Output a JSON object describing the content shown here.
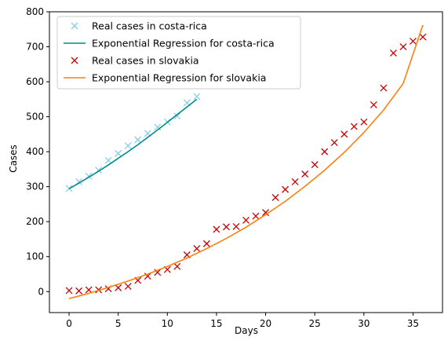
{
  "chart_data": {
    "type": "line",
    "title": "",
    "xlabel": "Days",
    "ylabel": "Cases",
    "xlim": [
      -2,
      38
    ],
    "ylim": [
      -60,
      800
    ],
    "xticks": [
      0,
      5,
      10,
      15,
      20,
      25,
      30,
      35
    ],
    "yticks": [
      0,
      100,
      200,
      300,
      400,
      500,
      600,
      700,
      800
    ],
    "grid": false,
    "legend_position": "top-left",
    "series": [
      {
        "name": "Real cases in costa-rica",
        "kind": "scatter",
        "marker": "x",
        "color": "#87ceeb",
        "x": [
          0,
          1,
          2,
          3,
          4,
          5,
          6,
          7,
          8,
          9,
          10,
          11,
          12,
          13
        ],
        "y": [
          295,
          314,
          330,
          347,
          375,
          395,
          417,
          434,
          452,
          470,
          485,
          502,
          540,
          558
        ]
      },
      {
        "name": "Exponential Regression for costa-rica",
        "kind": "line",
        "color": "#008b8b",
        "x": [
          0,
          1,
          2,
          3,
          4,
          5,
          6,
          7,
          8,
          9,
          10,
          11,
          12,
          13
        ],
        "y": [
          294,
          310,
          327,
          344,
          362,
          381,
          400,
          420,
          441,
          462,
          484,
          506,
          528,
          550
        ]
      },
      {
        "name": "Real cases in slovakia",
        "kind": "scatter",
        "marker": "x",
        "color": "#cc0000",
        "x": [
          0,
          1,
          2,
          3,
          4,
          5,
          6,
          7,
          8,
          9,
          10,
          11,
          12,
          13,
          14,
          15,
          16,
          17,
          18,
          19,
          20,
          21,
          22,
          23,
          24,
          25,
          26,
          27,
          28,
          29,
          30,
          31,
          32,
          33,
          34,
          35,
          36
        ],
        "y": [
          3,
          2,
          5,
          5,
          8,
          11,
          15,
          32,
          44,
          55,
          63,
          72,
          105,
          123,
          137,
          178,
          185,
          186,
          204,
          216,
          226,
          269,
          292,
          314,
          336,
          363,
          400,
          426,
          450,
          472,
          485,
          534,
          582,
          682,
          700,
          716,
          728
        ]
      },
      {
        "name": "Exponential Regression for slovakia",
        "kind": "line",
        "color": "#ff7f0e",
        "x": [
          0,
          2,
          4,
          6,
          8,
          10,
          12,
          14,
          16,
          18,
          20,
          22,
          24,
          26,
          28,
          30,
          32,
          34,
          36
        ],
        "y": [
          -20,
          -5,
          12,
          30,
          50,
          72,
          96,
          123,
          152,
          184,
          220,
          258,
          301,
          347,
          398,
          455,
          519,
          595,
          762
        ]
      }
    ]
  }
}
